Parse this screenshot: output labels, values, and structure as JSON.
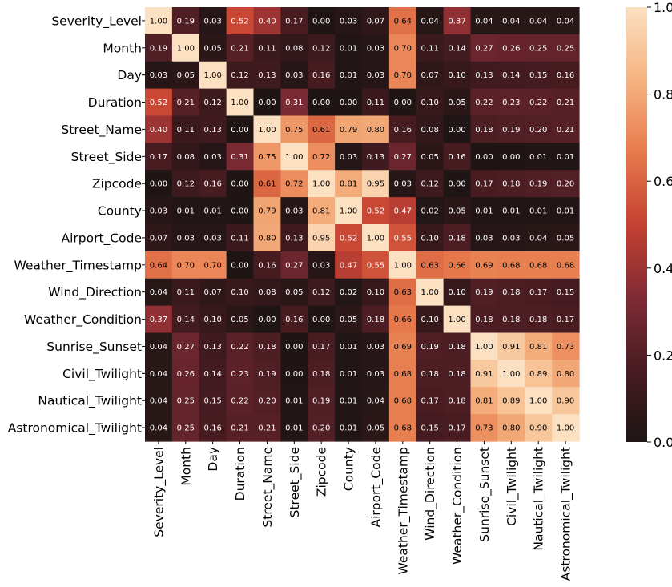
{
  "chart_data": {
    "type": "heatmap",
    "title": "",
    "xlabel": "",
    "ylabel": "",
    "labels": [
      "Severity_Level",
      "Month",
      "Day",
      "Duration",
      "Street_Name",
      "Street_Side",
      "Zipcode",
      "County",
      "Airport_Code",
      "Weather_Timestamp",
      "Wind_Direction",
      "Weather_Condition",
      "Sunrise_Sunset",
      "Civil_Twilight",
      "Nautical_Twilight",
      "Astronomical_Twilight"
    ],
    "values": [
      [
        1.0,
        0.19,
        0.03,
        0.52,
        0.4,
        0.17,
        0.0,
        0.03,
        0.07,
        0.64,
        0.04,
        0.37,
        0.04,
        0.04,
        0.04,
        0.04
      ],
      [
        0.19,
        1.0,
        0.05,
        0.21,
        0.11,
        0.08,
        0.12,
        0.01,
        0.03,
        0.7,
        0.11,
        0.14,
        0.27,
        0.26,
        0.25,
        0.25
      ],
      [
        0.03,
        0.05,
        1.0,
        0.12,
        0.13,
        0.03,
        0.16,
        0.01,
        0.03,
        0.7,
        0.07,
        0.1,
        0.13,
        0.14,
        0.15,
        0.16
      ],
      [
        0.52,
        0.21,
        0.12,
        1.0,
        0.0,
        0.31,
        0.0,
        0.0,
        0.11,
        0.0,
        0.1,
        0.05,
        0.22,
        0.23,
        0.22,
        0.21
      ],
      [
        0.4,
        0.11,
        0.13,
        0.0,
        1.0,
        0.75,
        0.61,
        0.79,
        0.8,
        0.16,
        0.08,
        0.0,
        0.18,
        0.19,
        0.2,
        0.21
      ],
      [
        0.17,
        0.08,
        0.03,
        0.31,
        0.75,
        1.0,
        0.72,
        0.03,
        0.13,
        0.27,
        0.05,
        0.16,
        0.0,
        0.0,
        0.01,
        0.01
      ],
      [
        0.0,
        0.12,
        0.16,
        0.0,
        0.61,
        0.72,
        1.0,
        0.81,
        0.95,
        0.03,
        0.12,
        0.0,
        0.17,
        0.18,
        0.19,
        0.2
      ],
      [
        0.03,
        0.01,
        0.01,
        0.0,
        0.79,
        0.03,
        0.81,
        1.0,
        0.52,
        0.47,
        0.02,
        0.05,
        0.01,
        0.01,
        0.01,
        0.01
      ],
      [
        0.07,
        0.03,
        0.03,
        0.11,
        0.8,
        0.13,
        0.95,
        0.52,
        1.0,
        0.55,
        0.1,
        0.18,
        0.03,
        0.03,
        0.04,
        0.05
      ],
      [
        0.64,
        0.7,
        0.7,
        0.0,
        0.16,
        0.27,
        0.03,
        0.47,
        0.55,
        1.0,
        0.63,
        0.66,
        0.69,
        0.68,
        0.68,
        0.68
      ],
      [
        0.04,
        0.11,
        0.07,
        0.1,
        0.08,
        0.05,
        0.12,
        0.02,
        0.1,
        0.63,
        1.0,
        0.1,
        0.19,
        0.18,
        0.17,
        0.15
      ],
      [
        0.37,
        0.14,
        0.1,
        0.05,
        0.0,
        0.16,
        0.0,
        0.05,
        0.18,
        0.66,
        0.1,
        1.0,
        0.18,
        0.18,
        0.18,
        0.17
      ],
      [
        0.04,
        0.27,
        0.13,
        0.22,
        0.18,
        0.0,
        0.17,
        0.01,
        0.03,
        0.69,
        0.19,
        0.18,
        1.0,
        0.91,
        0.81,
        0.73
      ],
      [
        0.04,
        0.26,
        0.14,
        0.23,
        0.19,
        0.0,
        0.18,
        0.01,
        0.03,
        0.68,
        0.18,
        0.18,
        0.91,
        1.0,
        0.89,
        0.8
      ],
      [
        0.04,
        0.25,
        0.15,
        0.22,
        0.2,
        0.01,
        0.19,
        0.01,
        0.04,
        0.68,
        0.17,
        0.18,
        0.81,
        0.89,
        1.0,
        0.9
      ],
      [
        0.04,
        0.25,
        0.16,
        0.21,
        0.21,
        0.01,
        0.2,
        0.01,
        0.05,
        0.68,
        0.15,
        0.17,
        0.73,
        0.8,
        0.9,
        1.0
      ]
    ],
    "value_range": [
      0,
      1
    ],
    "colormap": "dark-to-peach",
    "colorbar": {
      "ticks": [
        0.0,
        0.2,
        0.4,
        0.6,
        0.8,
        1.0
      ],
      "tick_labels": [
        "0.0",
        "0.2",
        "0.4",
        "0.6",
        "0.8",
        "1.0"
      ],
      "placement": "right"
    },
    "annotations": "cell values shown with two decimals",
    "grid": false
  },
  "colors": {
    "cmap_stops": [
      "#1e1514",
      "#481c22",
      "#802b34",
      "#c44132",
      "#e77a4c",
      "#f5b481",
      "#fbe0c1"
    ],
    "text_light": "#ffffff",
    "text_dark": "#000000",
    "background": "#ffffff"
  }
}
